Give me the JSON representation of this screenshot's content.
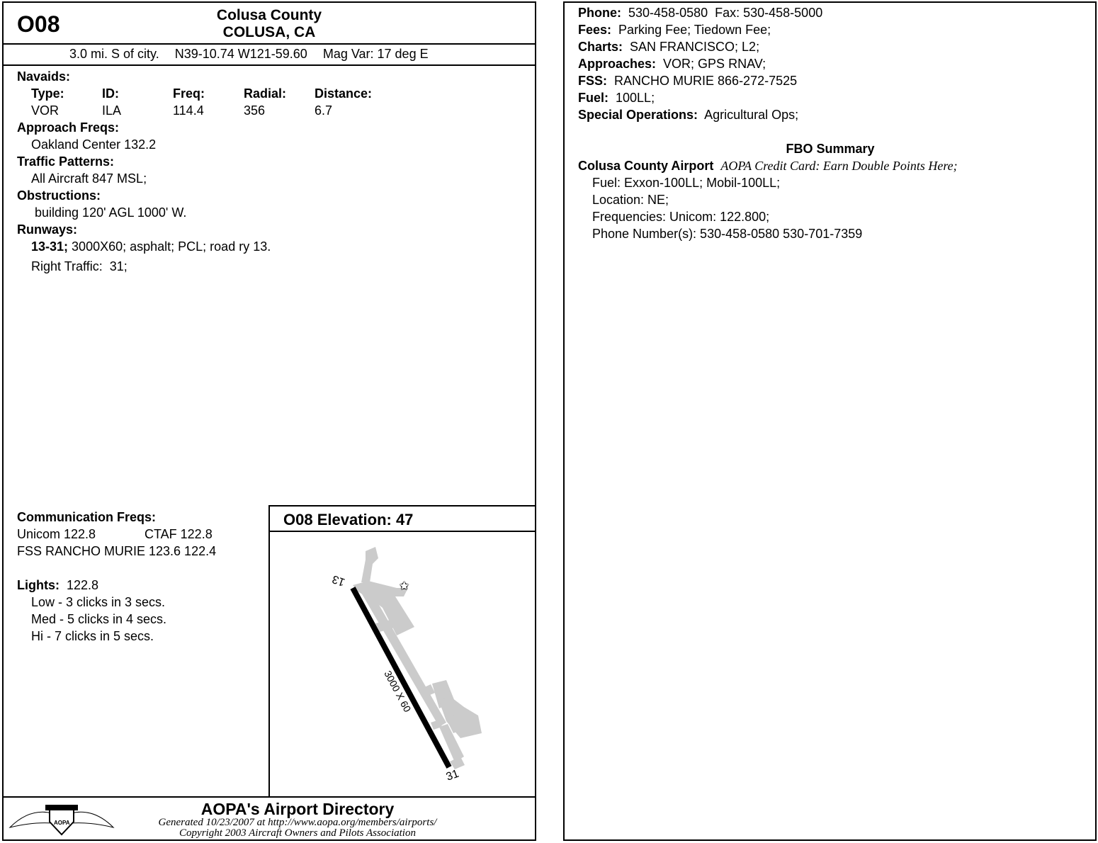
{
  "header": {
    "id": "O08",
    "name": "Colusa County",
    "city": "COLUSA, CA",
    "location": "3.0 mi. S of city.",
    "coords": "N39-10.74 W121-59.60",
    "magvar": "Mag Var: 17 deg E"
  },
  "navaids": {
    "title": "Navaids:",
    "headers": [
      "Type:",
      "ID:",
      "Freq:",
      "Radial:",
      "Distance:"
    ],
    "row": [
      "VOR",
      "ILA",
      "114.4",
      "356",
      "6.7"
    ]
  },
  "approach": {
    "title": "Approach Freqs:",
    "value": "Oakland Center 132.2"
  },
  "traffic": {
    "title": "Traffic Patterns:",
    "value": "All Aircraft 847 MSL;"
  },
  "obstructions": {
    "title": "Obstructions:",
    "value": "building 120' AGL 1000' W."
  },
  "runways": {
    "title": "Runways:",
    "id": "13-31;",
    "desc": "3000X60; asphalt; PCL; road ry 13.",
    "traffic": "Right Traffic:  31;"
  },
  "comm": {
    "title": "Communication Freqs:",
    "unicom": "Unicom 122.8",
    "ctaf": "CTAF 122.8",
    "fss": "FSS RANCHO MURIE 123.6 122.4"
  },
  "lights": {
    "title": "Lights:",
    "freq": "122.8",
    "items": [
      "Low - 3 clicks in 3 secs.",
      "Med - 5 clicks in 4 secs.",
      "Hi - 7 clicks in 5 secs."
    ]
  },
  "diagram": {
    "title": "O08 Elevation: 47",
    "rwy_a": "13",
    "rwy_b": "31",
    "dims": "3000 X 60"
  },
  "footer": {
    "title": "AOPA's Airport Directory",
    "generated": "Generated 10/23/2007 at http://www.aopa.org/members/airports/",
    "copyright": "Copyright 2003 Aircraft Owners and Pilots Association",
    "logo_text": "AOPA"
  },
  "right": {
    "phone_label": "Phone:",
    "phone": "530-458-0580  Fax: 530-458-5000",
    "fees_label": "Fees:",
    "fees": "Parking Fee; Tiedown Fee;",
    "charts_label": "Charts:",
    "charts": "SAN FRANCISCO; L2;",
    "approaches_label": "Approaches:",
    "approaches": "VOR; GPS RNAV;",
    "fss_label": "FSS:",
    "fss": "RANCHO MURIE 866-272-7525",
    "fuel_label": "Fuel:",
    "fuel": "100LL;",
    "special_label": "Special Operations:",
    "special": "Agricultural Ops;",
    "fbo_title": "FBO Summary",
    "fbo_name": "Colusa County Airport",
    "fbo_note": "AOPA Credit Card: Earn Double Points Here;",
    "fbo_lines": [
      "Fuel: Exxon-100LL; Mobil-100LL;",
      "Location: NE;",
      "Frequencies: Unicom: 122.800;",
      "Phone Number(s): 530-458-0580 530-701-7359"
    ]
  }
}
